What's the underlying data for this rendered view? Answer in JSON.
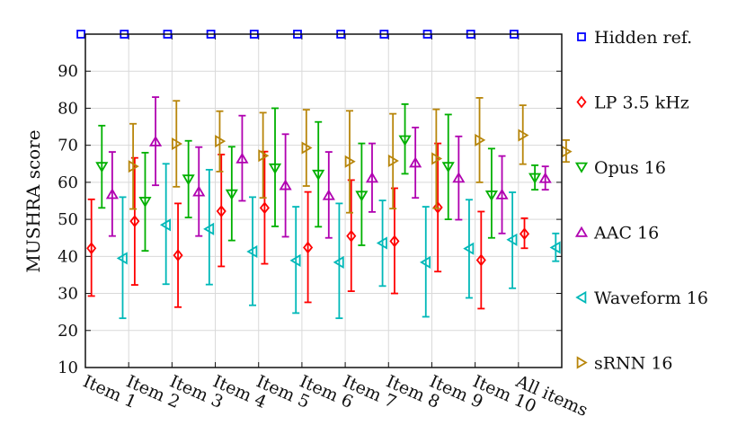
{
  "chart_data": {
    "type": "scatter",
    "ylabel": "MUSHRA score",
    "ylim": [
      10,
      100
    ],
    "yticks": [
      10,
      20,
      30,
      40,
      50,
      60,
      70,
      80,
      90
    ],
    "grid": true,
    "legend_position": "right-outside",
    "categories": [
      "Item 1",
      "Item 2",
      "Item 3",
      "Item 4",
      "Item 5",
      "Item 6",
      "Item 7",
      "Item 8",
      "Item 9",
      "Item 10",
      "All items"
    ],
    "series": [
      {
        "name": "Hidden ref.",
        "color": "#0000ff",
        "marker": "square",
        "values": [
          100,
          100,
          100,
          100,
          100,
          100,
          100,
          100,
          100,
          100,
          100
        ],
        "lower": [
          100,
          100,
          100,
          100,
          100,
          100,
          100,
          100,
          100,
          100,
          100
        ],
        "upper": [
          100,
          100,
          100,
          100,
          100,
          100,
          100,
          100,
          100,
          100,
          100
        ]
      },
      {
        "name": "LP 3.5 kHz",
        "color": "#ff0000",
        "marker": "diamond",
        "values": [
          42.2,
          49.5,
          40.3,
          52.2,
          53.1,
          42.4,
          45.5,
          44.1,
          53.2,
          39.0,
          46.1
        ],
        "lower": [
          29.3,
          32.3,
          26.3,
          37.3,
          38.0,
          27.6,
          30.6,
          30.0,
          35.9,
          25.9,
          42.2
        ],
        "upper": [
          55.4,
          66.6,
          54.3,
          67.5,
          68.3,
          57.4,
          60.6,
          58.4,
          70.5,
          52.1,
          50.3
        ]
      },
      {
        "name": "Opus 16",
        "color": "#00b000",
        "marker": "triangle-down",
        "values": [
          64.2,
          54.8,
          60.8,
          56.8,
          63.8,
          62.1,
          56.4,
          71.4,
          64.2,
          56.5,
          61.2
        ],
        "lower": [
          53.1,
          41.5,
          50.5,
          44.3,
          48.1,
          48.0,
          43.0,
          62.3,
          50.0,
          45.0,
          58.0
        ],
        "upper": [
          75.3,
          68.0,
          71.2,
          69.6,
          80.0,
          76.3,
          70.5,
          81.1,
          78.3,
          69.1,
          64.6
        ]
      },
      {
        "name": "AAC 16",
        "color": "#b000b0",
        "marker": "triangle-up",
        "values": [
          56.8,
          71.0,
          57.5,
          66.4,
          59.2,
          56.5,
          61.2,
          65.3,
          61.2,
          56.7,
          61.1
        ],
        "lower": [
          45.5,
          59.2,
          45.5,
          55.0,
          45.3,
          45.0,
          52.0,
          55.8,
          49.9,
          46.2,
          58.0
        ],
        "upper": [
          68.2,
          83.0,
          69.5,
          78.0,
          73.0,
          68.2,
          70.5,
          74.8,
          72.4,
          67.1,
          64.3
        ]
      },
      {
        "name": "Waveform 16",
        "color": "#00b8b8",
        "marker": "triangle-left",
        "values": [
          39.5,
          48.5,
          47.4,
          41.3,
          38.9,
          38.4,
          43.6,
          38.4,
          42.1,
          44.5,
          42.4
        ],
        "lower": [
          23.3,
          32.5,
          32.4,
          26.8,
          24.7,
          23.3,
          32.0,
          23.7,
          28.8,
          31.4,
          38.7
        ],
        "upper": [
          56.0,
          65.0,
          63.4,
          56.0,
          53.4,
          54.3,
          55.1,
          53.4,
          55.3,
          57.3,
          46.2
        ]
      },
      {
        "name": "sRNN 16",
        "color": "#b8860b",
        "marker": "triangle-right",
        "values": [
          64.3,
          70.4,
          71.1,
          67.2,
          69.3,
          65.6,
          65.8,
          66.4,
          71.4,
          72.7,
          68.3
        ],
        "lower": [
          52.8,
          58.8,
          62.9,
          55.8,
          59.0,
          51.8,
          52.9,
          53.0,
          60.0,
          64.9,
          65.5
        ],
        "upper": [
          75.8,
          82.0,
          79.2,
          78.8,
          79.6,
          79.3,
          78.5,
          79.7,
          82.8,
          80.8,
          71.4
        ]
      }
    ]
  }
}
